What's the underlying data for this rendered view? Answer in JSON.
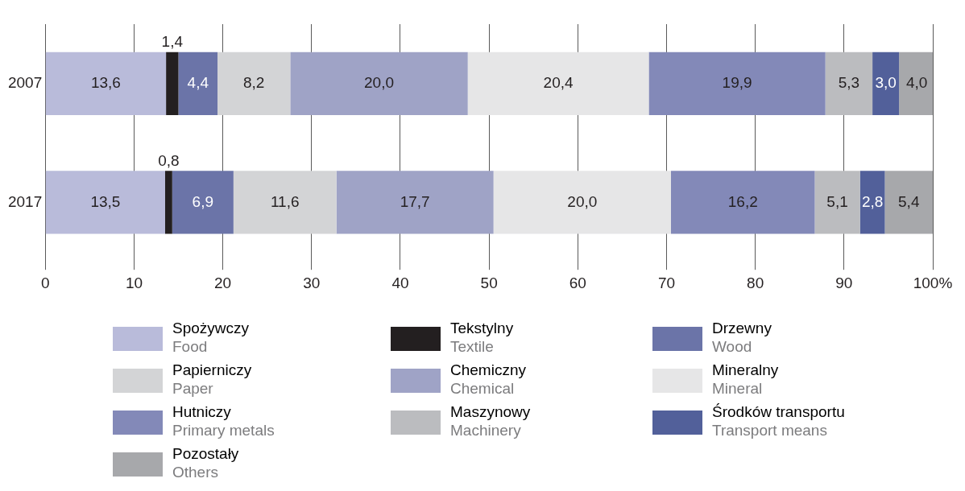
{
  "chart_data": {
    "type": "bar",
    "orientation": "horizontal",
    "stacked": true,
    "categories": [
      "2007",
      "2017"
    ],
    "series": [
      {
        "name": "Spożywczy\nFood",
        "color": "#b9bbda",
        "values": [
          13.6,
          13.5
        ],
        "value_labels": [
          "13,6",
          "13,5"
        ]
      },
      {
        "name": "Tekstylny\nTextile",
        "color": "#231f20",
        "values": [
          1.4,
          0.8
        ],
        "value_labels": [
          "1,4",
          "0,8"
        ]
      },
      {
        "name": "Drzewny\nWood",
        "color": "#6b74a8",
        "values": [
          4.4,
          6.9
        ],
        "value_labels": [
          "4,4",
          "6,9"
        ]
      },
      {
        "name": "Papierniczy\nPaper",
        "color": "#d3d4d6",
        "values": [
          8.2,
          11.6
        ],
        "value_labels": [
          "8,2",
          "11,6"
        ]
      },
      {
        "name": "Chemiczny\nChemical",
        "color": "#9fa3c6",
        "values": [
          20.0,
          17.7
        ],
        "value_labels": [
          "20,0",
          "17,7"
        ]
      },
      {
        "name": "Mineralny\nMineral",
        "color": "#e6e6e7",
        "values": [
          20.4,
          20.0
        ],
        "value_labels": [
          "20,4",
          "20,0"
        ]
      },
      {
        "name": "Hutniczy\nPrimary metals",
        "color": "#8389b8",
        "values": [
          19.9,
          16.2
        ],
        "value_labels": [
          "19,9",
          "16,2"
        ]
      },
      {
        "name": "Maszynowy\nMachinery",
        "color": "#bbbcbf",
        "values": [
          5.3,
          5.1
        ],
        "value_labels": [
          "5,3",
          "5,1"
        ]
      },
      {
        "name": "Środków transportu\nTransport means",
        "color": "#52609a",
        "values": [
          3.0,
          2.8
        ],
        "value_labels": [
          "3,0",
          "2,8"
        ]
      },
      {
        "name": "Pozostały\nOthers",
        "color": "#a7a8ab",
        "values": [
          4.0,
          5.4
        ],
        "value_labels": [
          "4,0",
          "5,4"
        ]
      }
    ],
    "xlim": [
      0,
      100
    ],
    "xticks": [
      0,
      10,
      20,
      30,
      40,
      50,
      60,
      70,
      80,
      90,
      {
        "value": 100,
        "label": "100%"
      }
    ],
    "grid": "x",
    "legend": "bottom"
  }
}
